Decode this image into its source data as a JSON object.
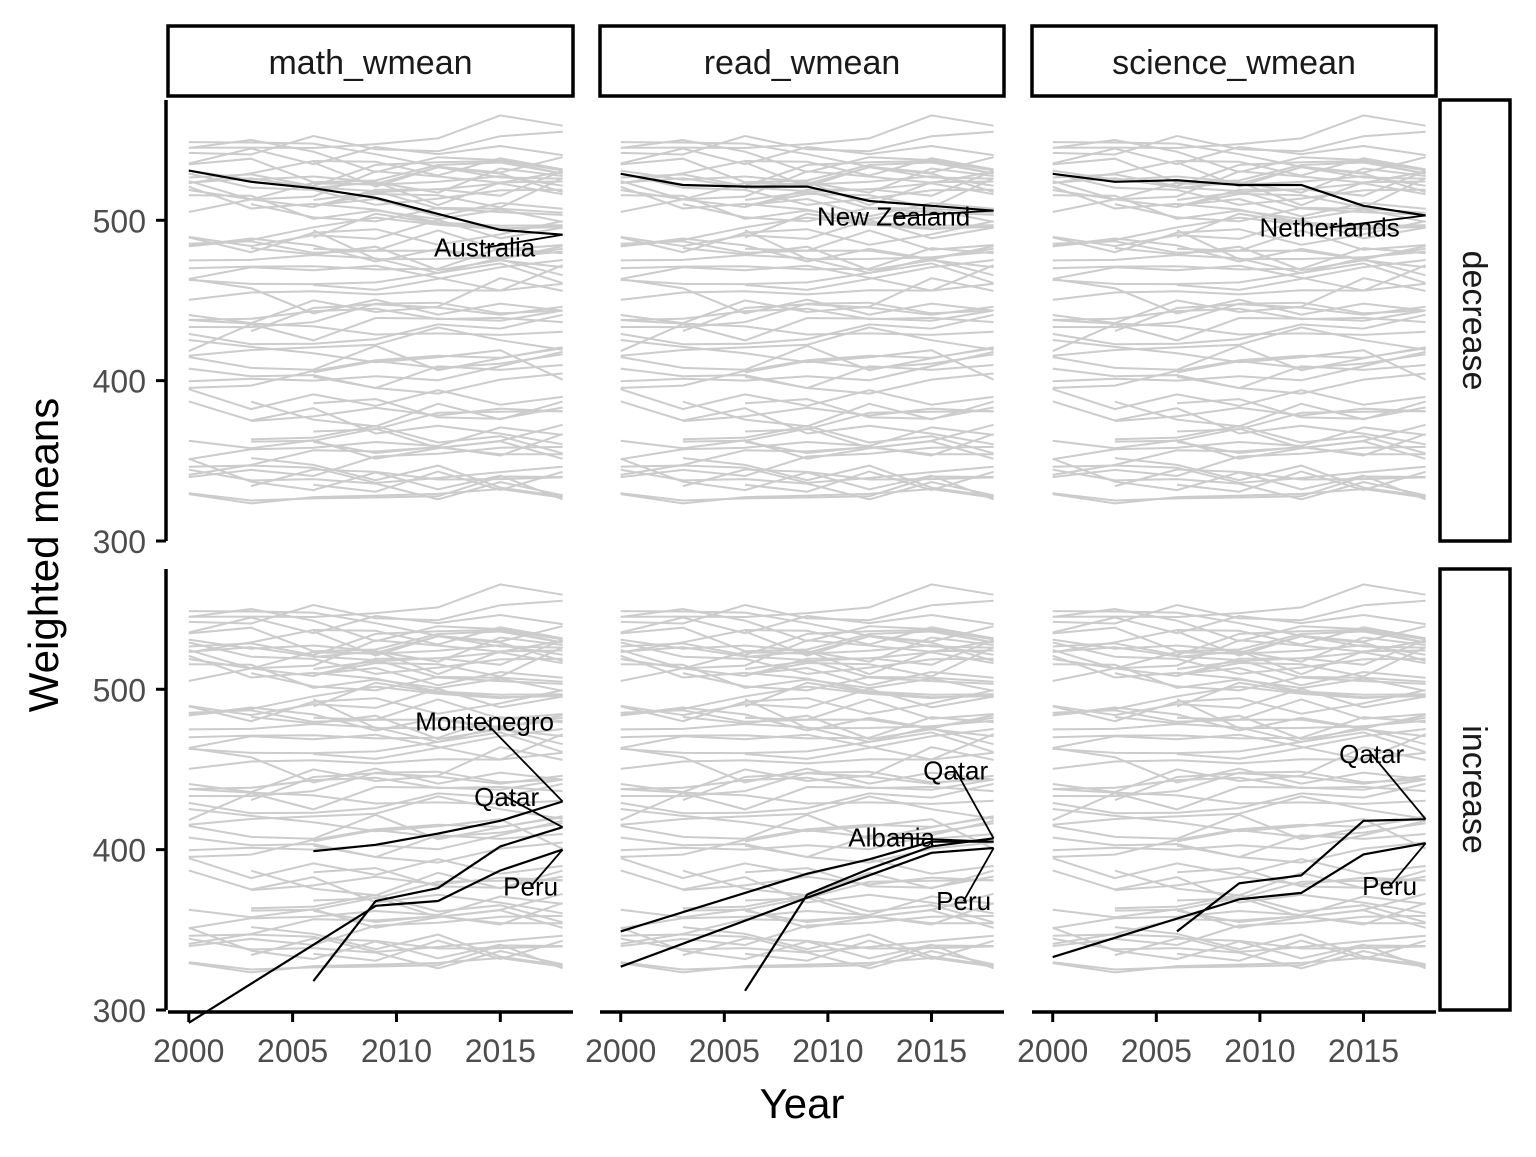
{
  "chart_data": {
    "type": "line",
    "xlabel": "Year",
    "ylabel": "Weighted means",
    "x_ticks": [
      2000,
      2005,
      2010,
      2015
    ],
    "y_ticks": [
      300,
      400,
      500
    ],
    "xlim": [
      1999,
      2018.5
    ],
    "ylim": [
      300,
      575
    ],
    "grid": false,
    "facets": {
      "columns": [
        "math_wmean",
        "read_wmean",
        "science_wmean"
      ],
      "rows": [
        "decrease",
        "increase"
      ]
    },
    "background_series_color": "#cccccc",
    "highlight_color": "#000000",
    "highlighted": [
      {
        "column": "math_wmean",
        "row": "decrease",
        "label": "Australia",
        "x": [
          2000,
          2003,
          2006,
          2009,
          2012,
          2015,
          2018
        ],
        "y": [
          531,
          524,
          520,
          514,
          504,
          494,
          491
        ]
      },
      {
        "column": "read_wmean",
        "row": "decrease",
        "label": "New Zealand",
        "x": [
          2000,
          2003,
          2006,
          2009,
          2012,
          2015,
          2018
        ],
        "y": [
          529,
          522,
          521,
          521,
          512,
          509,
          506
        ]
      },
      {
        "column": "science_wmean",
        "row": "decrease",
        "label": "Netherlands",
        "x": [
          2000,
          2003,
          2006,
          2009,
          2012,
          2015,
          2018
        ],
        "y": [
          529,
          524,
          525,
          522,
          522,
          509,
          503
        ]
      },
      {
        "column": "math_wmean",
        "row": "increase",
        "label": "Montenegro",
        "x": [
          2006,
          2009,
          2012,
          2015,
          2018
        ],
        "y": [
          399,
          403,
          410,
          418,
          430
        ]
      },
      {
        "column": "math_wmean",
        "row": "increase",
        "label": "Qatar",
        "x": [
          2006,
          2009,
          2012,
          2015,
          2018
        ],
        "y": [
          318,
          368,
          376,
          402,
          414
        ]
      },
      {
        "column": "math_wmean",
        "row": "increase",
        "label": "Peru",
        "x": [
          2000,
          2009,
          2012,
          2015,
          2018
        ],
        "y": [
          292,
          365,
          368,
          387,
          400
        ]
      },
      {
        "column": "read_wmean",
        "row": "increase",
        "label": "Qatar",
        "x": [
          2006,
          2009,
          2012,
          2015,
          2018
        ],
        "y": [
          312,
          372,
          388,
          402,
          407
        ]
      },
      {
        "column": "read_wmean",
        "row": "increase",
        "label": "Albania",
        "x": [
          2000,
          2009,
          2012,
          2015,
          2018
        ],
        "y": [
          349,
          385,
          394,
          405,
          405
        ]
      },
      {
        "column": "read_wmean",
        "row": "increase",
        "label": "Peru",
        "x": [
          2000,
          2009,
          2012,
          2015,
          2018
        ],
        "y": [
          327,
          370,
          384,
          398,
          401
        ]
      },
      {
        "column": "science_wmean",
        "row": "increase",
        "label": "Qatar",
        "x": [
          2006,
          2009,
          2012,
          2015,
          2018
        ],
        "y": [
          349,
          379,
          384,
          418,
          419
        ]
      },
      {
        "column": "science_wmean",
        "row": "increase",
        "label": "Peru",
        "x": [
          2000,
          2009,
          2012,
          2015,
          2018
        ],
        "y": [
          333,
          369,
          373,
          397,
          404
        ]
      }
    ]
  }
}
